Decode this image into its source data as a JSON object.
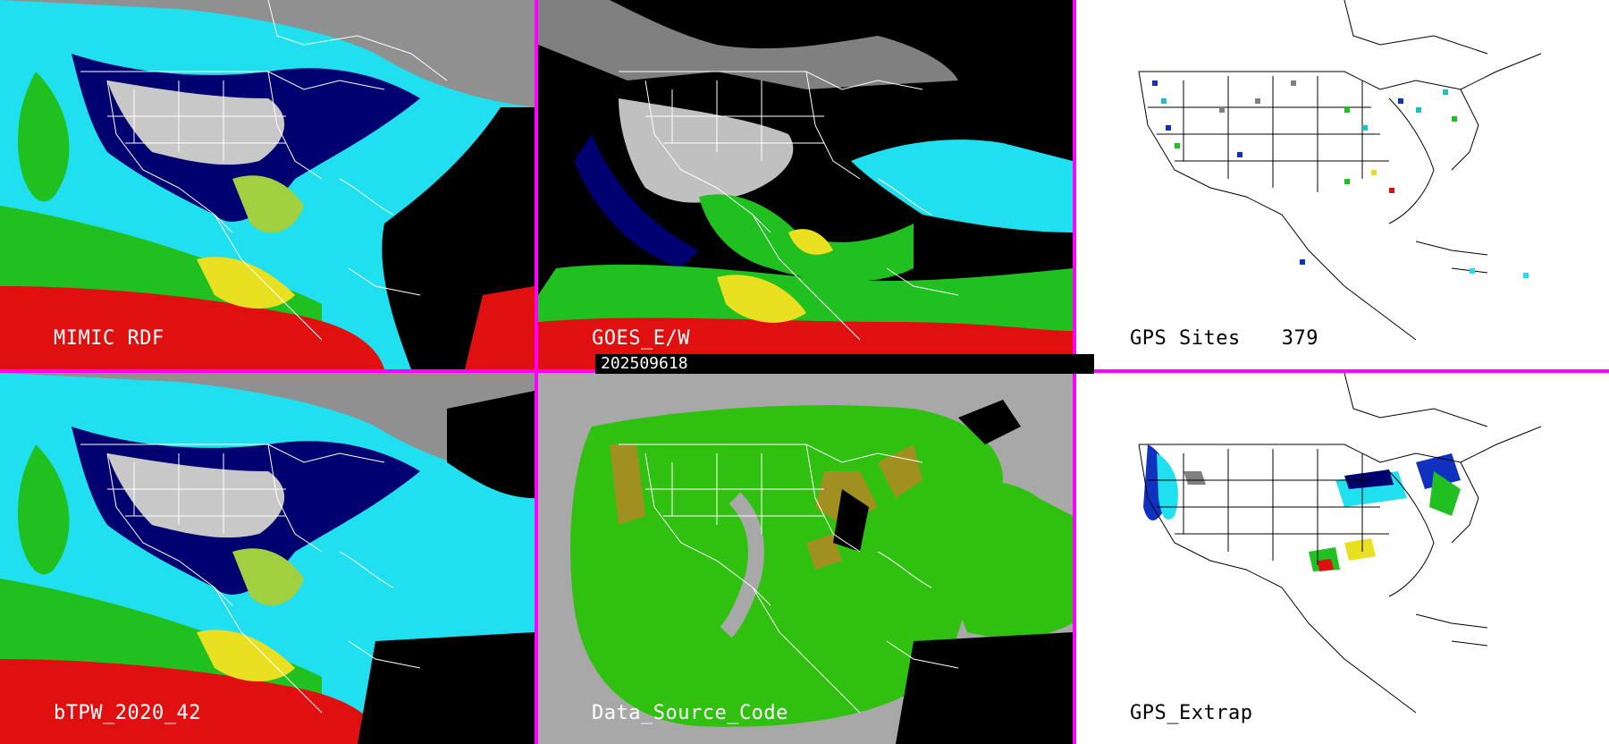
{
  "panels": [
    {
      "id": "mimic",
      "label": "MIMIC RDF",
      "style": "tpw"
    },
    {
      "id": "goes",
      "label": "GOES_E/W",
      "style": "goes"
    },
    {
      "id": "gps",
      "label": "GPS Sites",
      "count": "379",
      "style": "gps"
    },
    {
      "id": "btpw",
      "label": "bTPW_2020_42",
      "style": "tpw"
    },
    {
      "id": "dsc",
      "label": "Data_Source_Code",
      "style": "dsc"
    },
    {
      "id": "extrap",
      "label": "GPS_Extrap",
      "style": "extrap"
    }
  ],
  "timestamp": "202509618",
  "colors": {
    "divider": "#ff00ff",
    "tpw_scale": [
      "#a0a0a0",
      "#d0d0d0",
      "#000070",
      "#1030c0",
      "#20e0f0",
      "#20c020",
      "#a0d040",
      "#e8e020",
      "#e01010",
      "#8000a0"
    ]
  }
}
